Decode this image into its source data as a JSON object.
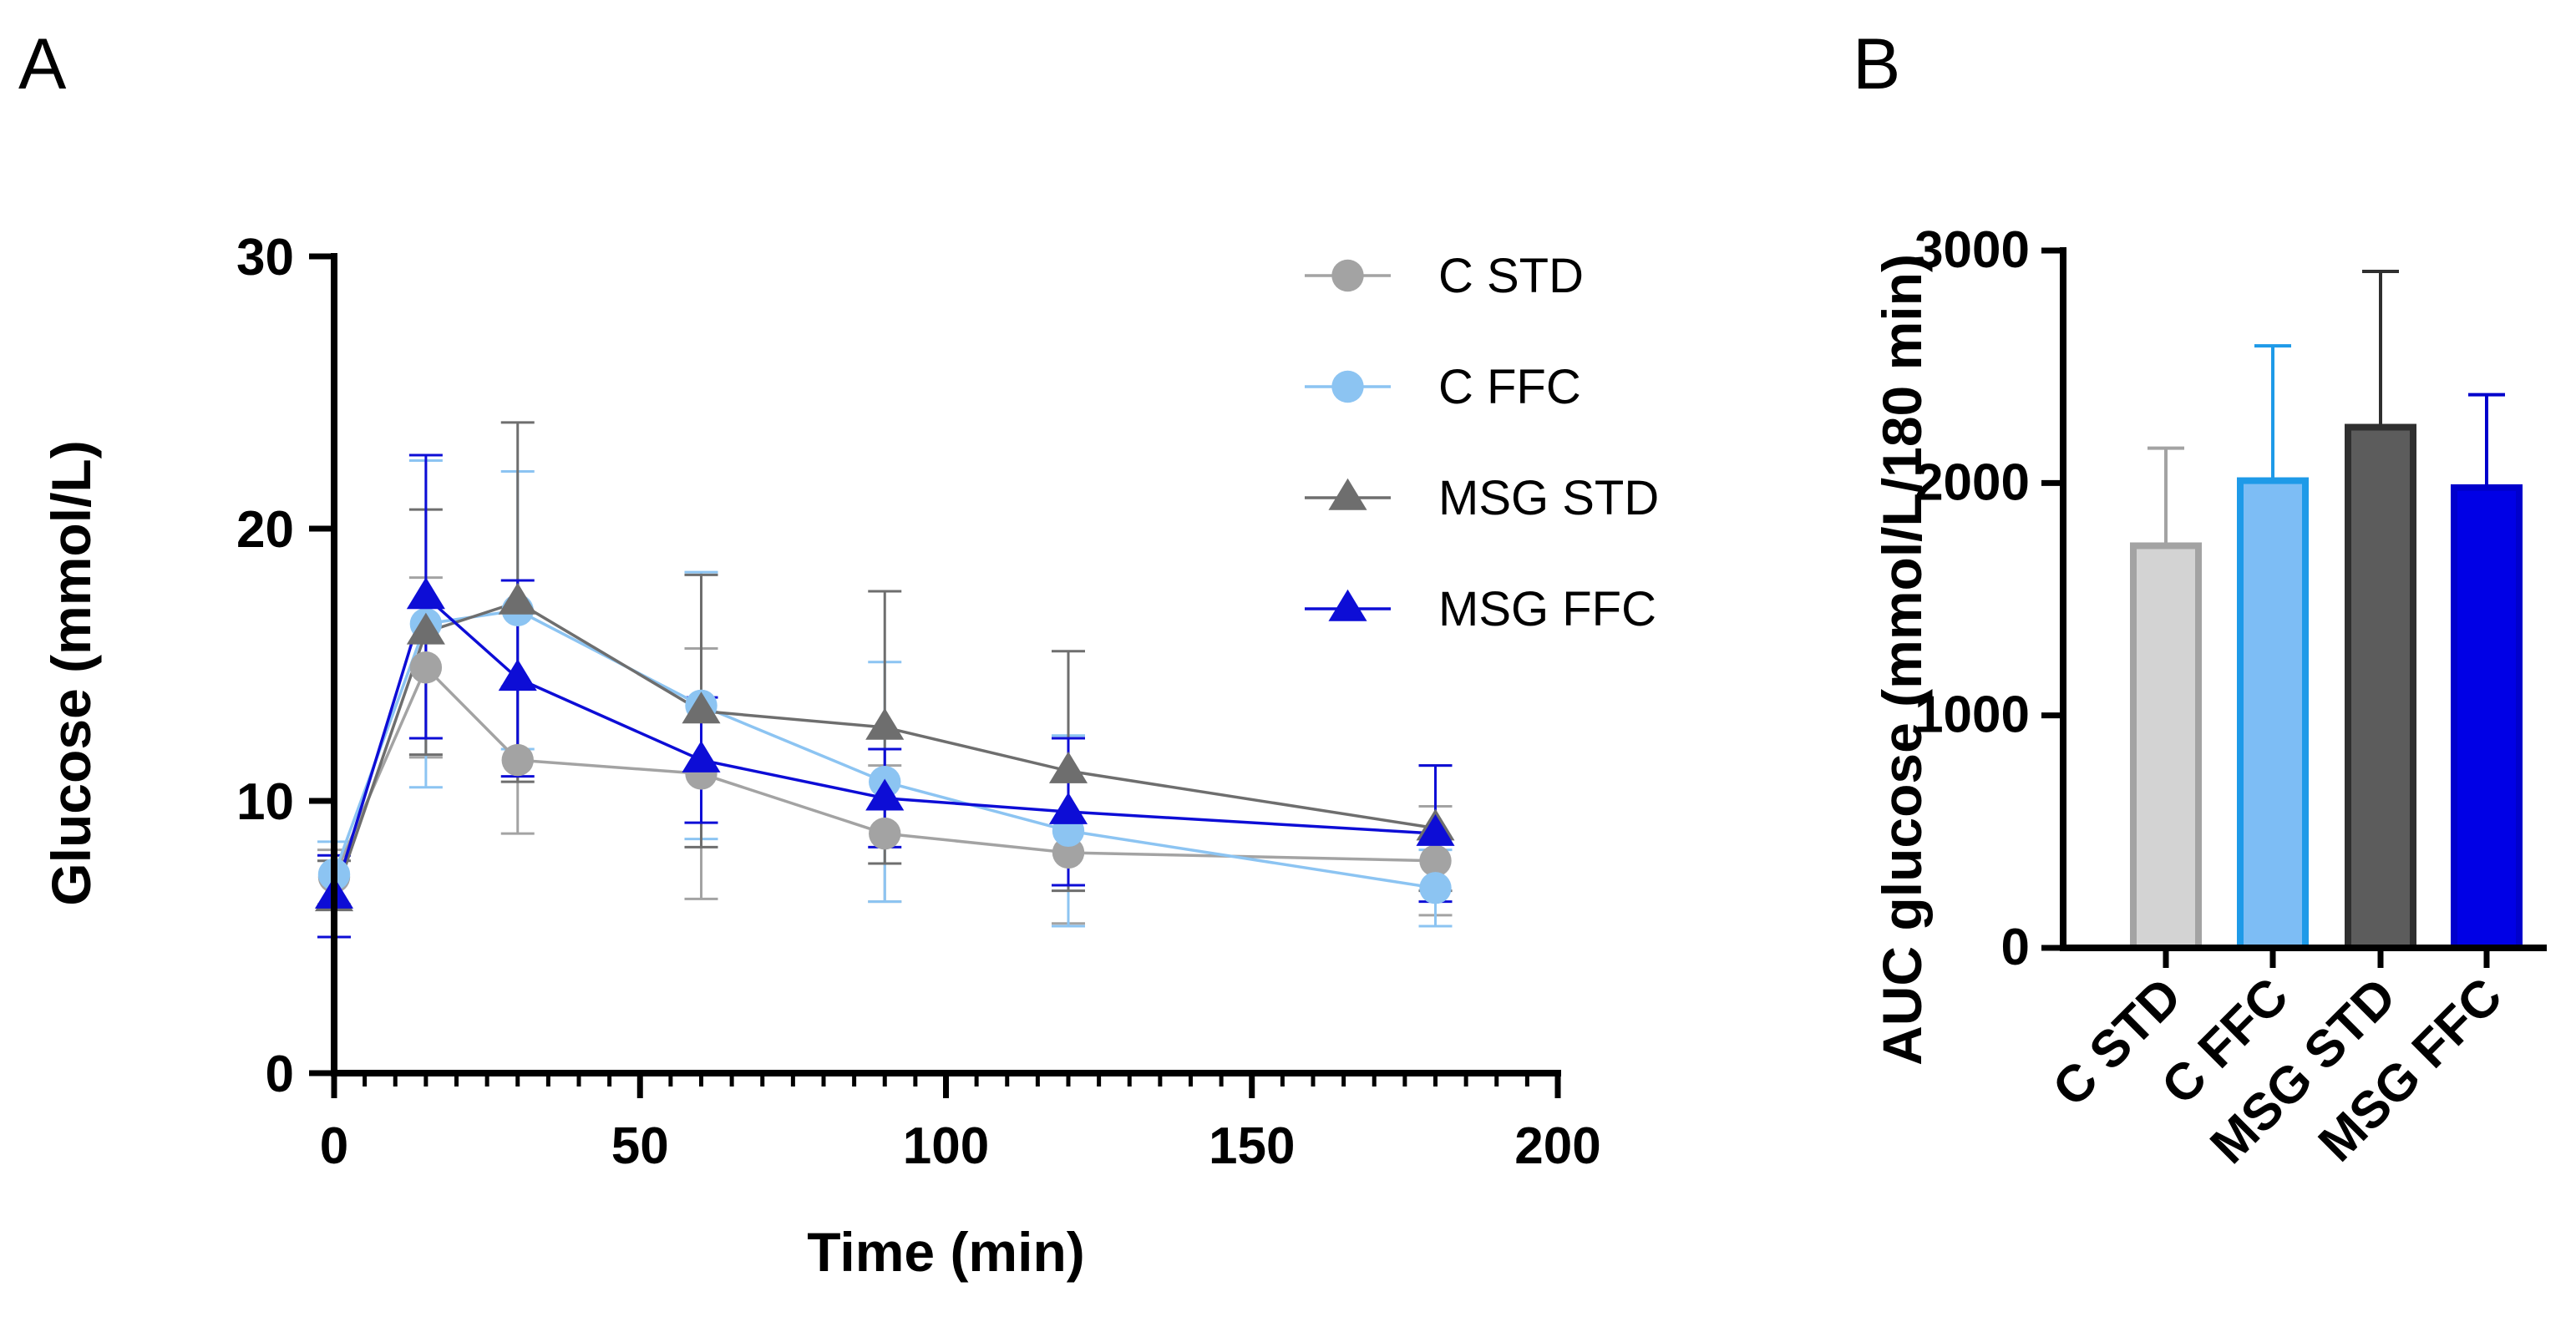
{
  "panel_labels": {
    "a": "A",
    "b": "B"
  },
  "chart_data": [
    {
      "type": "line",
      "panel": "A",
      "title": "",
      "xlabel": "Time (min)",
      "ylabel": "Glucose (mmol/L)",
      "xlim": [
        0,
        200
      ],
      "ylim": [
        0,
        30
      ],
      "xticks": [
        0,
        50,
        100,
        150,
        200
      ],
      "xtick_labels": [
        "0",
        "50",
        "100",
        "150",
        "200"
      ],
      "yticks": [
        0,
        10,
        20,
        30
      ],
      "ytick_labels": [
        "0",
        "10",
        "20",
        "30"
      ],
      "x_minor_step": 5,
      "grid": false,
      "legend_position": "top-right",
      "x": [
        0,
        15,
        30,
        60,
        90,
        120,
        180
      ],
      "series": [
        {
          "name": "C STD",
          "color": "#a3a3a3",
          "marker": "circle",
          "values": [
            7.2,
            14.9,
            11.5,
            11.0,
            8.8,
            8.1,
            7.8
          ],
          "errors": [
            1.0,
            3.3,
            2.7,
            4.6,
            2.5,
            2.6,
            2.0
          ]
        },
        {
          "name": "C FFC",
          "color": "#8cc4f2",
          "marker": "circle",
          "values": [
            7.3,
            16.5,
            17.0,
            13.5,
            10.7,
            8.9,
            6.8
          ],
          "errors": [
            1.2,
            6.0,
            5.1,
            4.9,
            4.4,
            3.5,
            1.4
          ]
        },
        {
          "name": "MSG STD",
          "color": "#6e6e6e",
          "marker": "triangle",
          "values": [
            6.4,
            16.2,
            17.3,
            13.3,
            12.7,
            11.1,
            9.0
          ],
          "errors": [
            1.4,
            4.5,
            6.6,
            5.0,
            5.0,
            4.4,
            2.3
          ]
        },
        {
          "name": "MSG FFC",
          "color": "#0d0dd6",
          "marker": "triangle",
          "values": [
            6.5,
            17.5,
            14.5,
            11.5,
            10.1,
            9.6,
            8.8
          ],
          "errors": [
            1.5,
            5.2,
            3.6,
            2.3,
            1.8,
            2.7,
            2.5
          ]
        }
      ]
    },
    {
      "type": "bar",
      "panel": "B",
      "title": "",
      "xlabel": "",
      "ylabel": "AUC glucose (mmol/L/180 min)",
      "ylim": [
        0,
        3000
      ],
      "yticks": [
        0,
        1000,
        2000,
        3000
      ],
      "ytick_labels": [
        "0",
        "1000",
        "2000",
        "3000"
      ],
      "grid": false,
      "categories": [
        "C STD",
        "C FFC",
        "MSG STD",
        "MSG FFC"
      ],
      "values": [
        1730,
        2010,
        2240,
        1980
      ],
      "errors": [
        420,
        580,
        670,
        400
      ],
      "fill_colors": [
        "#d3d3d3",
        "#7dbdf5",
        "#5c5c5c",
        "#0000e6"
      ],
      "edge_colors": [
        "#a3a3a3",
        "#1e9ae8",
        "#2f2f2f",
        "#0000cc"
      ]
    }
  ]
}
